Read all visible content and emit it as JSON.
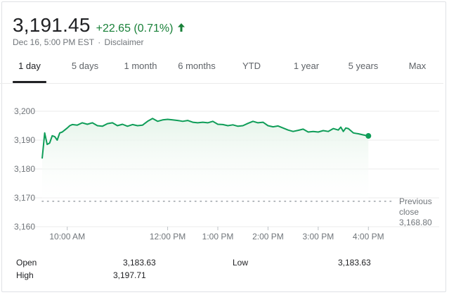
{
  "header": {
    "price": "3,191.45",
    "change": "+22.65 (0.71%)",
    "arrow_icon": "arrow-up-icon",
    "timestamp": "Dec 16, 5:00 PM EST",
    "separator": "·",
    "disclaimer": "Disclaimer",
    "positive_color": "#188038"
  },
  "tabs": [
    {
      "label": "1 day",
      "active": true
    },
    {
      "label": "5 days",
      "active": false
    },
    {
      "label": "1 month",
      "active": false
    },
    {
      "label": "6 months",
      "active": false
    },
    {
      "label": "YTD",
      "active": false
    },
    {
      "label": "1 year",
      "active": false
    },
    {
      "label": "5 years",
      "active": false
    },
    {
      "label": "Max",
      "active": false
    }
  ],
  "chart_data": {
    "type": "area",
    "line_color": "#0f9d58",
    "fill_color": "#e6f4ea",
    "ylim": [
      3160,
      3200
    ],
    "y_ticks": [
      3160,
      3170,
      3180,
      3190,
      3200
    ],
    "y_tick_labels": [
      "3,160",
      "3,170",
      "3,180",
      "3,190",
      "3,200"
    ],
    "x_ticks": [
      10,
      12,
      13,
      14,
      15,
      16
    ],
    "x_tick_labels": [
      "10:00 AM",
      "12:00 PM",
      "1:00 PM",
      "2:00 PM",
      "3:00 PM",
      "4:00 PM"
    ],
    "xlim": [
      9.5,
      16.5
    ],
    "grid": true,
    "previous_close": {
      "value": 3168.8,
      "label_line1": "Previous",
      "label_line2": "close",
      "value_label": "3,168.80"
    },
    "series": [
      {
        "x": [
          9.5,
          9.55,
          9.6,
          9.65,
          9.7,
          9.75,
          9.8,
          9.85,
          9.9,
          9.95,
          10.0,
          10.05,
          10.1,
          10.2,
          10.3,
          10.4,
          10.5,
          10.6,
          10.7,
          10.8,
          10.9,
          11.0,
          11.1,
          11.2,
          11.3,
          11.4,
          11.5,
          11.6,
          11.7,
          11.8,
          11.9,
          12.0,
          12.1,
          12.2,
          12.3,
          12.4,
          12.5,
          12.6,
          12.7,
          12.8,
          12.9,
          13.0,
          13.1,
          13.2,
          13.3,
          13.4,
          13.5,
          13.6,
          13.7,
          13.8,
          13.9,
          14.0,
          14.1,
          14.2,
          14.3,
          14.4,
          14.5,
          14.6,
          14.7,
          14.8,
          14.9,
          15.0,
          15.1,
          15.2,
          15.3,
          15.4,
          15.45,
          15.5,
          15.55,
          15.6,
          15.7,
          15.8,
          15.9,
          16.0
        ],
        "y": [
          3183.6,
          3192.5,
          3188.5,
          3189.0,
          3191.5,
          3191.2,
          3190.0,
          3192.5,
          3192.8,
          3193.5,
          3194.2,
          3195.0,
          3195.4,
          3195.2,
          3196.0,
          3195.5,
          3196.0,
          3195.0,
          3194.8,
          3195.7,
          3196.0,
          3195.0,
          3195.5,
          3194.8,
          3195.4,
          3195.0,
          3195.2,
          3196.5,
          3197.5,
          3196.5,
          3197.0,
          3197.2,
          3197.0,
          3196.8,
          3196.5,
          3196.8,
          3196.2,
          3196.0,
          3196.2,
          3196.0,
          3196.5,
          3195.5,
          3195.4,
          3195.0,
          3195.3,
          3194.8,
          3195.0,
          3195.8,
          3196.5,
          3196.0,
          3196.2,
          3195.0,
          3194.6,
          3194.9,
          3194.2,
          3193.5,
          3193.0,
          3193.4,
          3193.8,
          3192.8,
          3193.0,
          3192.8,
          3193.3,
          3193.0,
          3194.0,
          3193.5,
          3194.5,
          3193.0,
          3194.2,
          3194.0,
          3192.5,
          3192.2,
          3191.8,
          3191.45
        ]
      }
    ]
  },
  "stats": {
    "open_label": "Open",
    "open_value": "3,183.63",
    "high_label": "High",
    "high_value": "3,197.71",
    "low_label": "Low",
    "low_value": "3,183.63"
  }
}
